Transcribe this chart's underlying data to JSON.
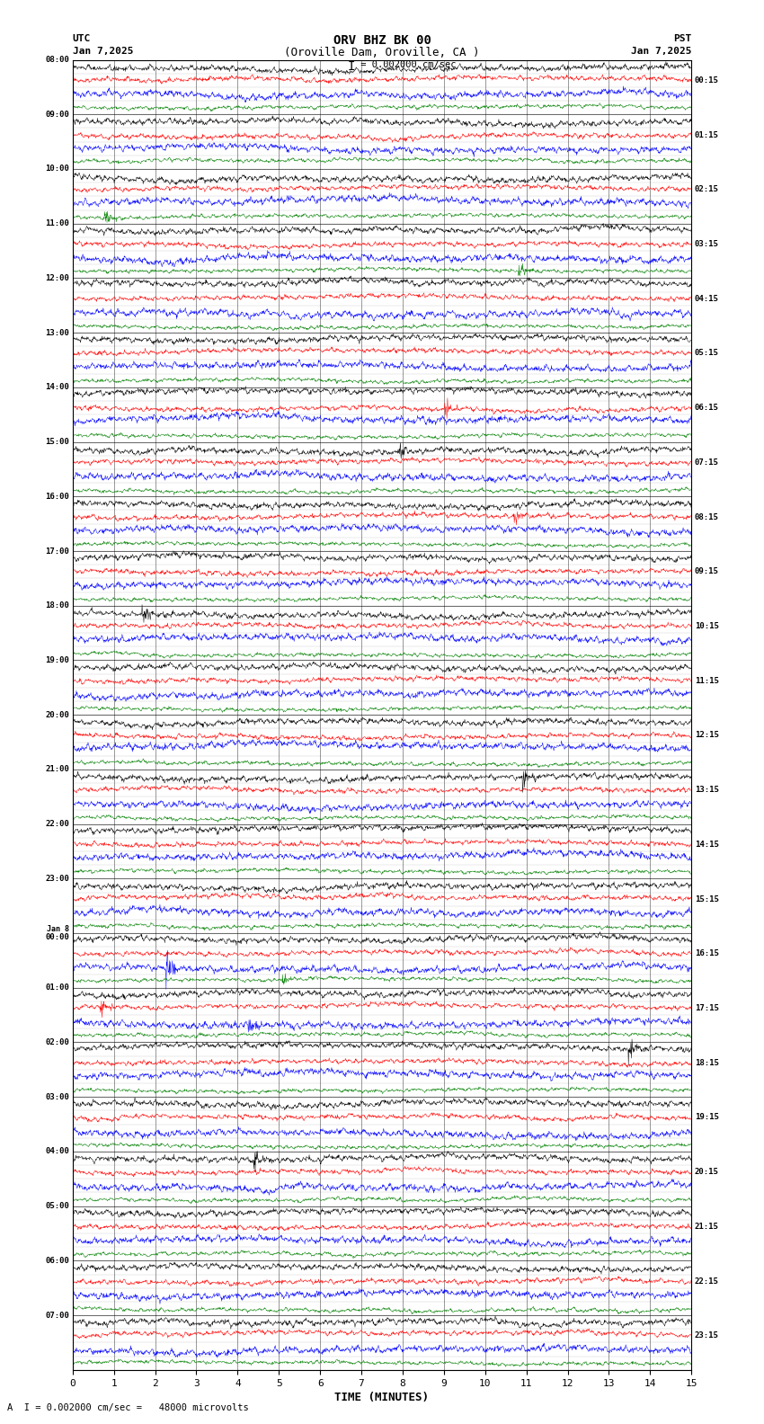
{
  "title_line1": "ORV BHZ BK 00",
  "title_line2": "(Oroville Dam, Oroville, CA )",
  "scale_label": "I = 0.002000 cm/sec",
  "footer_label": "A  I = 0.002000 cm/sec =   48000 microvolts",
  "utc_label": "UTC",
  "pst_label": "PST",
  "date_left": "Jan 7,2025",
  "date_right": "Jan 7,2025",
  "xlabel": "TIME (MINUTES)",
  "left_times": [
    "08:00",
    "09:00",
    "10:00",
    "11:00",
    "12:00",
    "13:00",
    "14:00",
    "15:00",
    "16:00",
    "17:00",
    "18:00",
    "19:00",
    "20:00",
    "21:00",
    "22:00",
    "23:00",
    "00:00",
    "01:00",
    "02:00",
    "03:00",
    "04:00",
    "05:00",
    "06:00",
    "07:00"
  ],
  "left_times_special": [
    16
  ],
  "right_times": [
    "00:15",
    "01:15",
    "02:15",
    "03:15",
    "04:15",
    "05:15",
    "06:15",
    "07:15",
    "08:15",
    "09:15",
    "10:15",
    "11:15",
    "12:15",
    "13:15",
    "14:15",
    "15:15",
    "16:15",
    "17:15",
    "18:15",
    "19:15",
    "20:15",
    "21:15",
    "22:15",
    "23:15"
  ],
  "n_rows": 24,
  "n_traces_per_row": 4,
  "colors": [
    "black",
    "red",
    "blue",
    "green"
  ],
  "bg_color": "white",
  "x_ticks": [
    0,
    1,
    2,
    3,
    4,
    5,
    6,
    7,
    8,
    9,
    10,
    11,
    12,
    13,
    14,
    15
  ],
  "x_lim": [
    0,
    15
  ],
  "fig_width": 8.5,
  "fig_height": 15.84
}
